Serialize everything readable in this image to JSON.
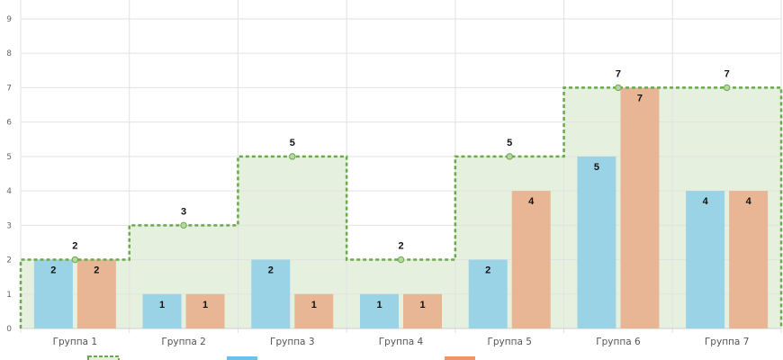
{
  "chart_data": {
    "type": "bar",
    "categories": [
      "Группа 1",
      "Группа 2",
      "Группа 3",
      "Группа 4",
      "Группа 5",
      "Группа 6",
      "Группа 7"
    ],
    "y_ticks": [
      0,
      1,
      2,
      3,
      4,
      5,
      6,
      7,
      8,
      9
    ],
    "ylim": [
      0,
      9.6
    ],
    "grid": true,
    "legend_position": "bottom",
    "series": [
      {
        "kind": "stepped-area-line",
        "values": [
          2,
          3,
          5,
          2,
          5,
          7,
          7
        ],
        "color": "#6aaa4a",
        "fill": "#e6f0df"
      },
      {
        "kind": "bar",
        "values": [
          2,
          1,
          2,
          1,
          2,
          5,
          4
        ],
        "color": "#9ad3e6"
      },
      {
        "kind": "bar",
        "values": [
          2,
          1,
          1,
          1,
          4,
          7,
          4
        ],
        "color": "#e8b695"
      }
    ],
    "legend_swatch_colors": [
      "#6aaa4a",
      "#6cc0ea",
      "#f0956a"
    ]
  }
}
